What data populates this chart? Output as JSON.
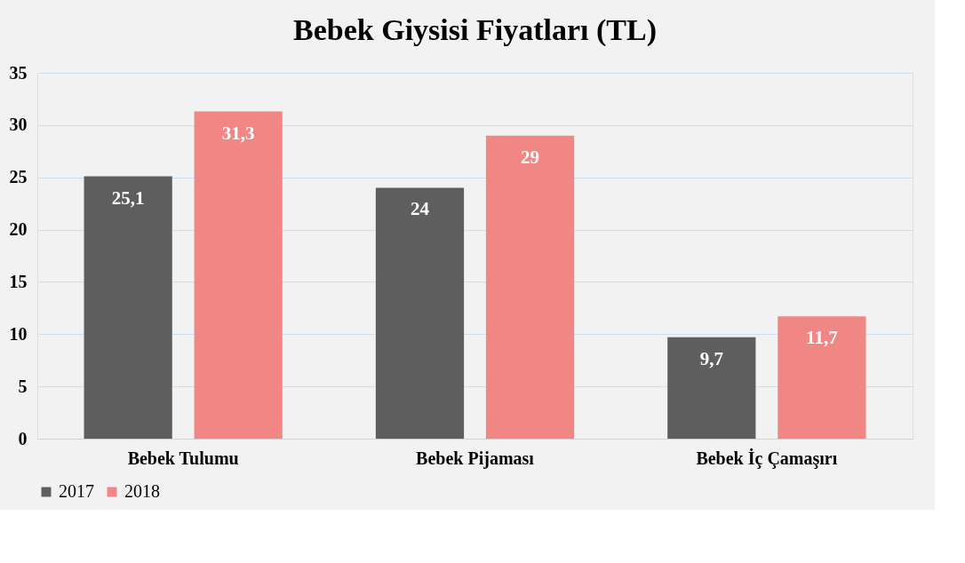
{
  "chart_data": {
    "type": "bar",
    "title": "Bebek Giysisi Fiyatları (TL)",
    "categories": [
      "Bebek Tulumu",
      "Bebek Pijaması",
      "Bebek İç Çamaşırı"
    ],
    "series": [
      {
        "name": "2017",
        "color": "#5e5e5e",
        "values": [
          25.1,
          24,
          9.7
        ],
        "value_labels": [
          "25,1",
          "24",
          "9,7"
        ]
      },
      {
        "name": "2018",
        "color": "#f08784",
        "values": [
          31.3,
          29,
          11.7
        ],
        "value_labels": [
          "31,3",
          "29",
          "11,7"
        ]
      }
    ],
    "ylim": [
      0,
      35
    ],
    "yticks": [
      0,
      5,
      10,
      15,
      20,
      25,
      30,
      35
    ],
    "grid": "y",
    "legend": "bottom"
  }
}
